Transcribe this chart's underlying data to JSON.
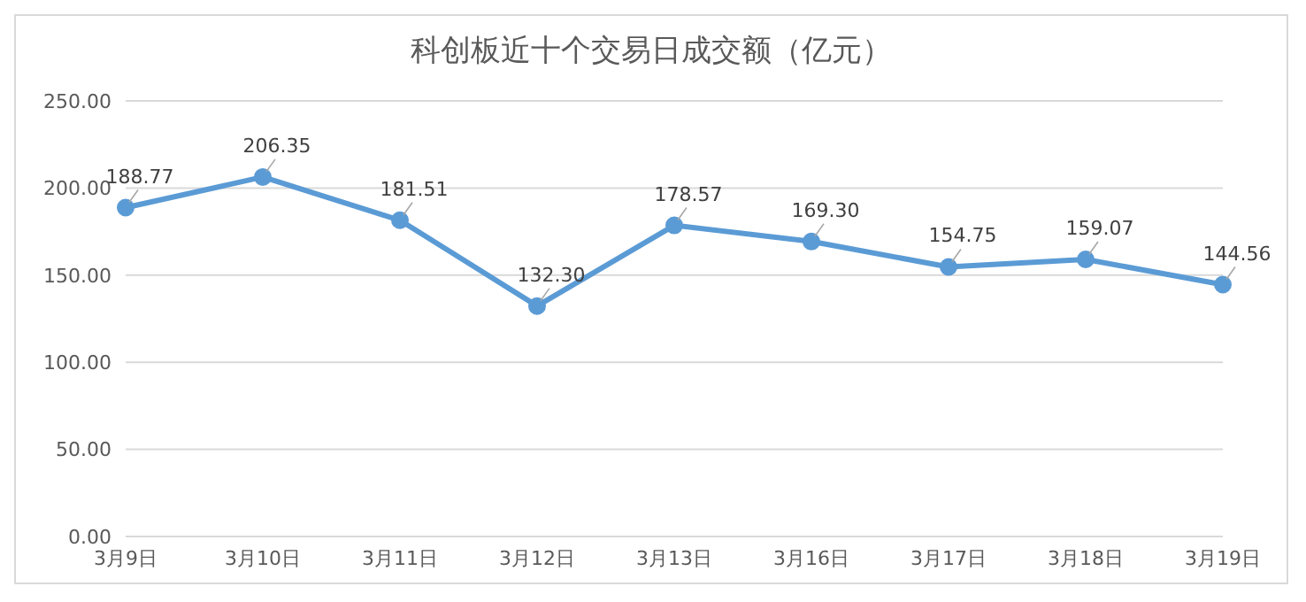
{
  "chart_data": {
    "type": "line",
    "title": "科创板近十个交易日成交额（亿元）",
    "categories": [
      "3月9日",
      "3月10日",
      "3月11日",
      "3月12日",
      "3月13日",
      "3月16日",
      "3月17日",
      "3月18日",
      "3月19日"
    ],
    "series": [
      {
        "color": "#5b9bd5",
        "values": [
          188.77,
          206.35,
          181.51,
          132.3,
          178.57,
          169.3,
          154.75,
          159.07,
          144.56
        ],
        "value_labels": [
          "188.77",
          "206.35",
          "181.51",
          "132.30",
          "178.57",
          "169.30",
          "154.75",
          "159.07",
          "144.56"
        ]
      }
    ],
    "ylim": [
      0,
      250
    ],
    "yticks": [
      {
        "value": 0,
        "label": "0.00"
      },
      {
        "value": 50,
        "label": "50.00"
      },
      {
        "value": 100,
        "label": "100.00"
      },
      {
        "value": 150,
        "label": "150.00"
      },
      {
        "value": 200,
        "label": "200.00"
      },
      {
        "value": 250,
        "label": "250.00"
      }
    ],
    "grid": "y",
    "marker": "circle",
    "line_style": "solid"
  }
}
